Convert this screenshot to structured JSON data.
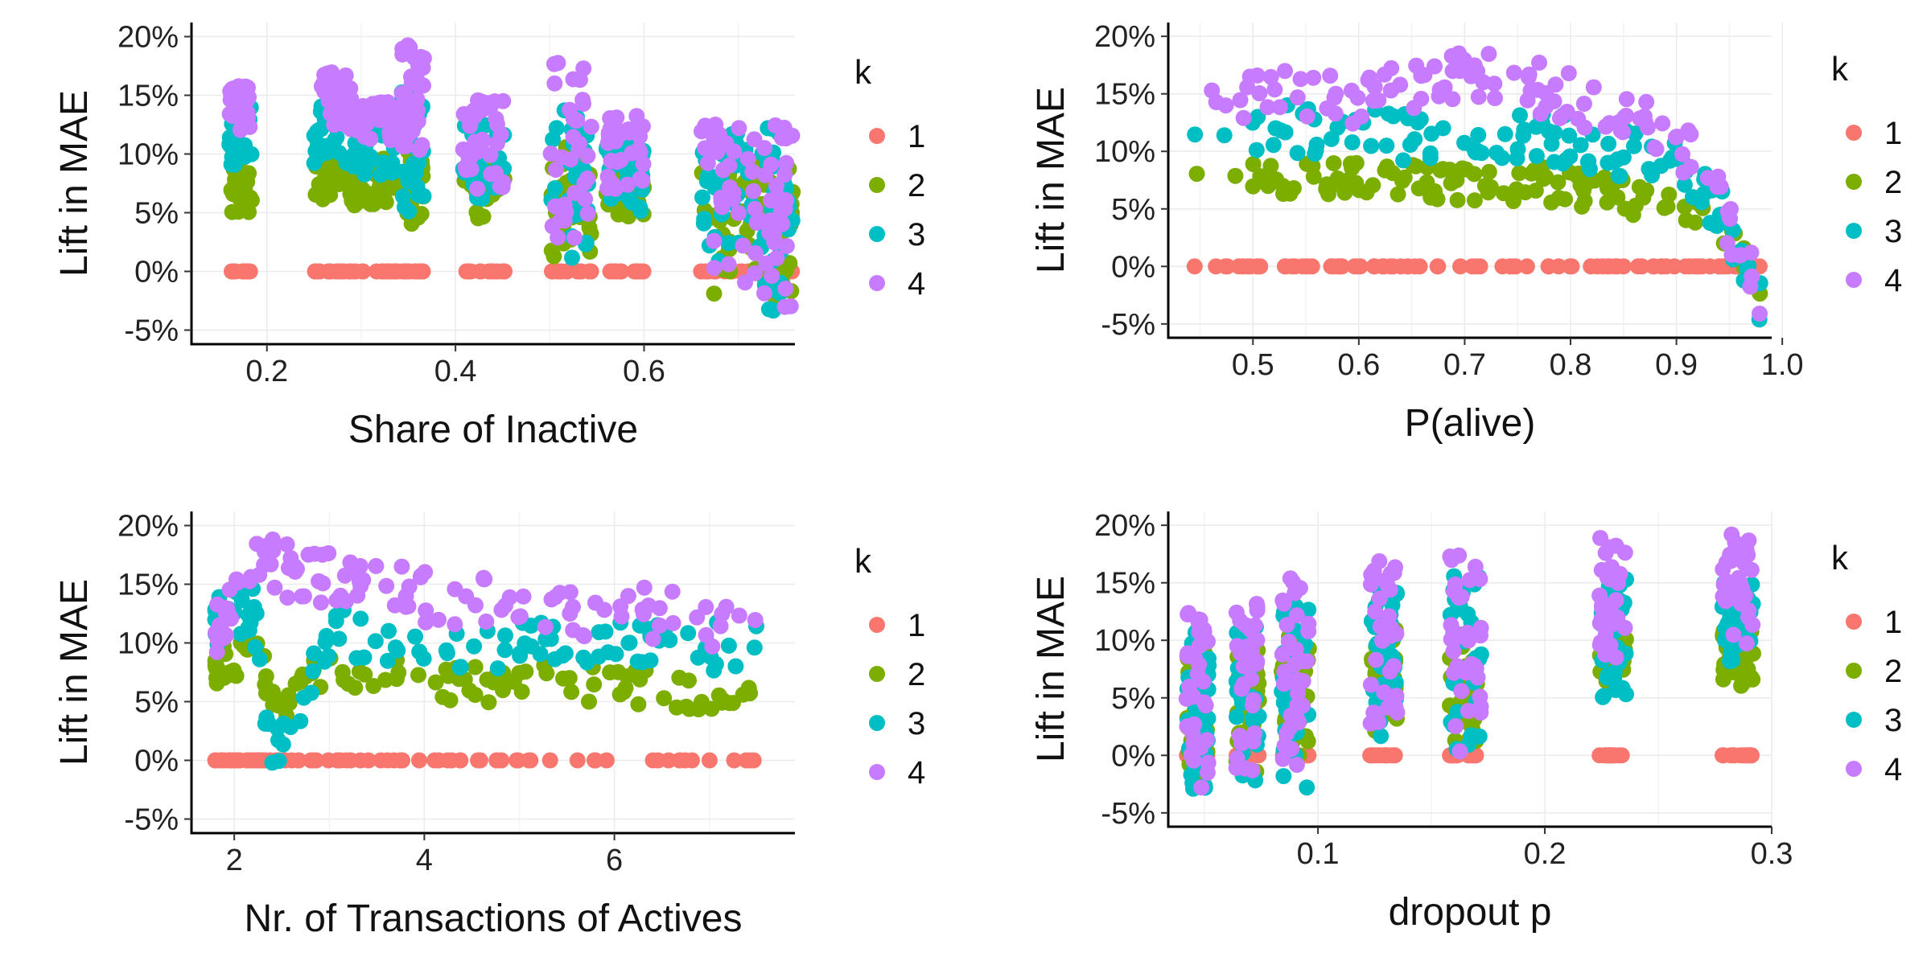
{
  "colors": {
    "1": "#F8766D",
    "2": "#7CAE00",
    "3": "#00BFC4",
    "4": "#C77CFF"
  },
  "legend": {
    "title": "k",
    "labels": [
      "1",
      "2",
      "3",
      "4"
    ]
  },
  "chart_data": [
    {
      "type": "scatter",
      "xlabel": "Share of Inactive",
      "ylabel": "Lift in MAE",
      "xlim": [
        0.12,
        0.76
      ],
      "ylim": [
        -6.2,
        21.2
      ],
      "x_ticks": [
        0.2,
        0.4,
        0.6
      ],
      "x_tick_labels": [
        "0.2",
        "0.4",
        "0.6"
      ],
      "y_ticks": [
        -5,
        0,
        5,
        10,
        15,
        20
      ],
      "y_tick_labels": [
        "-5%",
        "0%",
        "5%",
        "10%",
        "15%",
        "20%"
      ],
      "grid": true,
      "legend_position": "right",
      "series_by_k": true,
      "clusters": [
        {
          "x": 0.172,
          "xw": 0.012,
          "k1": [
            0,
            0
          ],
          "k2": [
            5,
            9
          ],
          "k3": [
            8,
            14
          ],
          "k4": [
            12,
            15.8
          ]
        },
        {
          "x": 0.27,
          "xw": 0.02,
          "k1": [
            0,
            0
          ],
          "k2": [
            6,
            10
          ],
          "k3": [
            9,
            14.5
          ],
          "k4": [
            12,
            17
          ]
        },
        {
          "x": 0.315,
          "xw": 0.025,
          "k1": [
            0,
            0
          ],
          "k2": [
            5.5,
            10
          ],
          "k3": [
            8,
            13
          ],
          "k4": [
            11,
            14.5
          ]
        },
        {
          "x": 0.355,
          "xw": 0.012,
          "k1": [
            0,
            0
          ],
          "k2": [
            4,
            10.5
          ],
          "k3": [
            5,
            15.5
          ],
          "k4": [
            10,
            19.5
          ]
        },
        {
          "x": 0.43,
          "xw": 0.022,
          "k1": [
            0,
            0
          ],
          "k2": [
            4.5,
            9
          ],
          "k3": [
            6,
            13
          ],
          "k4": [
            7,
            14.8
          ]
        },
        {
          "x": 0.523,
          "xw": 0.022,
          "k1": [
            0,
            0
          ],
          "k2": [
            1,
            11
          ],
          "k3": [
            0.5,
            14
          ],
          "k4": [
            2,
            17.8
          ]
        },
        {
          "x": 0.58,
          "xw": 0.02,
          "k1": [
            0,
            0
          ],
          "k2": [
            4.5,
            8
          ],
          "k3": [
            5,
            12
          ],
          "k4": [
            6.5,
            13.3
          ]
        },
        {
          "x": 0.69,
          "xw": 0.03,
          "k1": [
            0,
            0
          ],
          "k2": [
            -2,
            9.5
          ],
          "k3": [
            -1,
            12
          ],
          "k4": [
            -1.5,
            13
          ]
        },
        {
          "x": 0.74,
          "xw": 0.018,
          "k1": [
            0,
            0
          ],
          "k2": [
            -2.5,
            9
          ],
          "k3": [
            -3.5,
            12.5
          ],
          "k4": [
            -3.5,
            12.5
          ]
        }
      ]
    },
    {
      "type": "scatter",
      "xlabel": "P(alive)",
      "ylabel": "Lift in MAE",
      "xlim": [
        0.42,
        0.99
      ],
      "ylim": [
        -6.2,
        21.2
      ],
      "x_ticks": [
        0.5,
        0.6,
        0.7,
        0.8,
        0.9,
        1.0
      ],
      "x_tick_labels": [
        "0.5",
        "0.6",
        "0.7",
        "0.8",
        "0.9",
        "1.0"
      ],
      "y_ticks": [
        -5,
        0,
        5,
        10,
        15,
        20
      ],
      "y_tick_labels": [
        "-5%",
        "0%",
        "5%",
        "10%",
        "15%",
        "20%"
      ],
      "grid": true,
      "legend_position": "right",
      "series_by_k": true,
      "curve": {
        "x_range": [
          0.44,
          0.98
        ],
        "k2": [
          [
            0.44,
            7.5
          ],
          [
            0.6,
            7.5
          ],
          [
            0.8,
            7
          ],
          [
            0.9,
            5
          ],
          [
            0.94,
            3.5
          ],
          [
            0.98,
            -1.5
          ]
        ],
        "k3": [
          [
            0.44,
            12.5
          ],
          [
            0.6,
            11.5
          ],
          [
            0.8,
            11
          ],
          [
            0.9,
            8.5
          ],
          [
            0.94,
            5
          ],
          [
            0.98,
            -3
          ]
        ],
        "k4": [
          [
            0.44,
            15
          ],
          [
            0.6,
            14.5
          ],
          [
            0.7,
            16.5
          ],
          [
            0.8,
            15
          ],
          [
            0.9,
            11
          ],
          [
            0.94,
            6
          ],
          [
            0.98,
            -3
          ]
        ],
        "k1": [
          [
            0.44,
            0
          ],
          [
            0.98,
            0
          ]
        ]
      }
    },
    {
      "type": "scatter",
      "xlabel": "Nr. of Transactions of Actives",
      "ylabel": "Lift in MAE",
      "xlim": [
        1.55,
        7.9
      ],
      "ylim": [
        -6.2,
        21.2
      ],
      "x_ticks": [
        2,
        4,
        6
      ],
      "x_tick_labels": [
        "2",
        "4",
        "6"
      ],
      "y_ticks": [
        -5,
        0,
        5,
        10,
        15,
        20
      ],
      "y_tick_labels": [
        "-5%",
        "0%",
        "5%",
        "10%",
        "15%",
        "20%"
      ],
      "grid": true,
      "legend_position": "right",
      "series_by_k": true,
      "curve": {
        "x_range": [
          1.8,
          7.5
        ],
        "k2": [
          [
            1.8,
            8
          ],
          [
            2.2,
            9
          ],
          [
            2.5,
            5
          ],
          [
            3,
            8
          ],
          [
            4,
            6.5
          ],
          [
            5,
            6.5
          ],
          [
            6,
            6.5
          ],
          [
            7.2,
            5.5
          ]
        ],
        "k3": [
          [
            1.8,
            12
          ],
          [
            2.2,
            13
          ],
          [
            2.4,
            0
          ],
          [
            3,
            11
          ],
          [
            4,
            10
          ],
          [
            5,
            10
          ],
          [
            6,
            10.5
          ],
          [
            7.2,
            9.5
          ]
        ],
        "k4": [
          [
            1.8,
            11
          ],
          [
            2.2,
            17
          ],
          [
            2.6,
            16
          ],
          [
            3,
            15.5
          ],
          [
            4,
            14
          ],
          [
            5,
            13
          ],
          [
            6,
            12.5
          ],
          [
            7.2,
            12
          ]
        ],
        "k1": [
          [
            1.8,
            0
          ],
          [
            7.5,
            0
          ]
        ]
      }
    },
    {
      "type": "scatter",
      "xlabel": "dropout p",
      "ylabel": "Lift in MAE",
      "xlim": [
        0.034,
        0.3
      ],
      "ylim": [
        -6.2,
        21.2
      ],
      "x_ticks": [
        0.1,
        0.2,
        0.3
      ],
      "x_tick_labels": [
        "0.1",
        "0.2",
        "0.3"
      ],
      "y_ticks": [
        -5,
        0,
        5,
        10,
        15,
        20
      ],
      "y_tick_labels": [
        "-5%",
        "0%",
        "5%",
        "10%",
        "15%",
        "20%"
      ],
      "grid": true,
      "legend_position": "right",
      "series_by_k": true,
      "clusters": [
        {
          "x": 0.047,
          "xw": 0.005,
          "k1": [
            0,
            0
          ],
          "k2": [
            -2,
            9
          ],
          "k3": [
            -3.5,
            11
          ],
          "k4": [
            -3,
            13
          ]
        },
        {
          "x": 0.069,
          "xw": 0.005,
          "k1": [
            0,
            0
          ],
          "k2": [
            -2,
            9.5
          ],
          "k3": [
            -3,
            12
          ],
          "k4": [
            -3.5,
            14
          ]
        },
        {
          "x": 0.09,
          "xw": 0.006,
          "k1": [
            0,
            0
          ],
          "k2": [
            -1,
            10.5
          ],
          "k3": [
            -3,
            13
          ],
          "k4": [
            -1,
            15.5
          ]
        },
        {
          "x": 0.129,
          "xw": 0.006,
          "k1": [
            0,
            0
          ],
          "k2": [
            2,
            12
          ],
          "k3": [
            1,
            15
          ],
          "k4": [
            2,
            17
          ]
        },
        {
          "x": 0.165,
          "xw": 0.007,
          "k1": [
            0,
            0
          ],
          "k2": [
            1,
            11
          ],
          "k3": [
            0,
            16
          ],
          "k4": [
            0,
            18
          ]
        },
        {
          "x": 0.23,
          "xw": 0.006,
          "k1": [
            0,
            0
          ],
          "k2": [
            6,
            10.5
          ],
          "k3": [
            4.5,
            15.5
          ],
          "k4": [
            7,
            19
          ]
        },
        {
          "x": 0.285,
          "xw": 0.007,
          "k1": [
            0,
            0
          ],
          "k2": [
            6,
            11
          ],
          "k3": [
            8,
            15
          ],
          "k4": [
            9,
            19.5
          ]
        }
      ]
    }
  ]
}
